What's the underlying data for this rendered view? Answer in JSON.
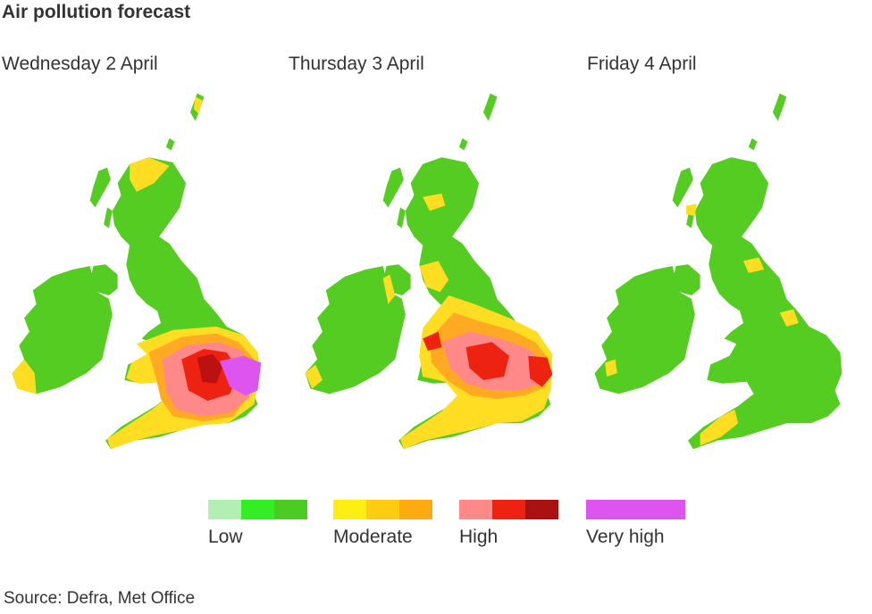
{
  "title": "Air pollution forecast",
  "days": [
    {
      "label": "Wednesday 2 April",
      "level": "very-high-in-south-east"
    },
    {
      "label": "Thursday 3 April",
      "level": "high-in-midlands-and-south-east"
    },
    {
      "label": "Friday 4 April",
      "level": "low-mostly"
    }
  ],
  "legend": [
    {
      "label": "Low",
      "colors": [
        "#b3eeb3",
        "#33ee22",
        "#4ccc22"
      ]
    },
    {
      "label": "Moderate",
      "colors": [
        "#ffee11",
        "#ffcc11",
        "#ffaa11"
      ]
    },
    {
      "label": "High",
      "colors": [
        "#ff8888",
        "#ee2211",
        "#aa1111"
      ]
    },
    {
      "label": "Very high",
      "colors": [
        "#dd55ee"
      ]
    }
  ],
  "source": "Source: Defra, Met Office",
  "colors": {
    "land_low": "#55cc22",
    "moderate": "#ffdd22",
    "moderate_orange": "#ffaa22",
    "high_pink": "#ff8888",
    "high_red": "#ee2211",
    "high_dark": "#bb1111",
    "very_high": "#dd55ee"
  }
}
